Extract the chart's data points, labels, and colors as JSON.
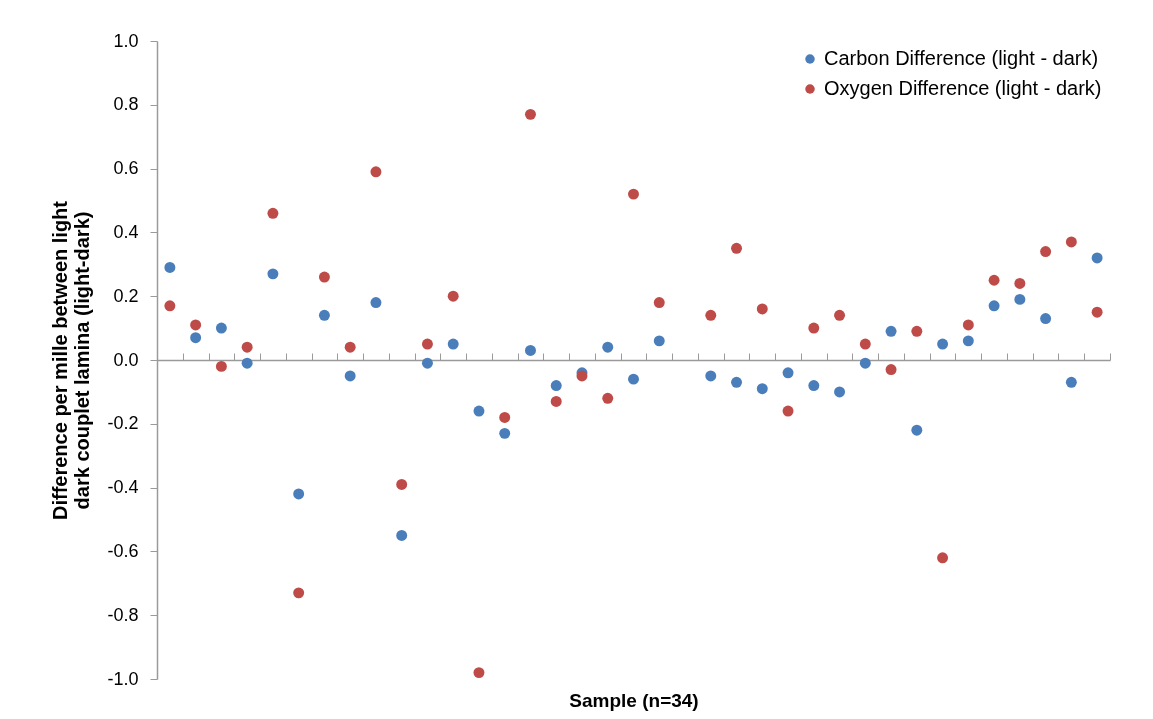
{
  "chart_data": {
    "type": "scatter",
    "xlabel": "Sample (n=34)",
    "ylabel": "Difference per mille between light dark couplet lamina (light-dark)",
    "categories": [
      null,
      null,
      null,
      null,
      null,
      null,
      null,
      null,
      null,
      null,
      null,
      null,
      null,
      null,
      null,
      null,
      null,
      null,
      null,
      null,
      null,
      null,
      null,
      null,
      null,
      null,
      null,
      null,
      null,
      null,
      null,
      null,
      null,
      null,
      null,
      null,
      null
    ],
    "series": [
      {
        "name": "Carbon Difference (light - dark)",
        "color": "#4a7ebb",
        "values": [
          0.29,
          0.07,
          0.1,
          -0.01,
          0.27,
          -0.42,
          0.14,
          -0.05,
          0.18,
          -0.55,
          -0.01,
          0.05,
          -0.16,
          -0.23,
          0.03,
          -0.08,
          -0.04,
          0.04,
          -0.06,
          0.06,
          null,
          -0.05,
          -0.07,
          -0.09,
          -0.04,
          -0.08,
          -0.1,
          -0.01,
          0.09,
          -0.22,
          0.05,
          0.06,
          0.17,
          0.19,
          0.13,
          -0.07,
          0.32
        ]
      },
      {
        "name": "Oxygen Difference (light - dark)",
        "color": "#be4b48",
        "values": [
          0.17,
          0.11,
          -0.02,
          0.04,
          0.46,
          -0.73,
          0.26,
          0.04,
          0.59,
          -0.39,
          0.05,
          0.2,
          -0.98,
          -0.18,
          0.77,
          -0.13,
          -0.05,
          -0.12,
          0.52,
          0.18,
          null,
          0.14,
          0.35,
          0.16,
          -0.16,
          0.1,
          0.14,
          0.05,
          -0.03,
          0.09,
          -0.62,
          0.11,
          0.25,
          0.24,
          0.34,
          0.37,
          0.15
        ]
      }
    ],
    "ylim": [
      -1,
      1
    ],
    "yticks": [
      {
        "value": -1,
        "label": "-1.0"
      },
      -0.8,
      -0.6,
      -0.4,
      -0.2,
      {
        "value": 0,
        "label": "0.0"
      },
      0.2,
      0.4,
      0.6,
      0.8,
      {
        "value": 1,
        "label": "1.0"
      }
    ],
    "tick_labels": "y",
    "legend": "top right",
    "marker": "circle"
  }
}
